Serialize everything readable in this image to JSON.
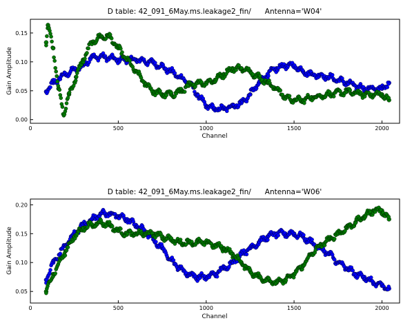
{
  "chart_data": [
    {
      "type": "scatter",
      "title": "D table: 42_091_6May.ms.leakage2_fin/      Antenna='W04'",
      "xlabel": "Channel",
      "ylabel": "Gain Amplitude",
      "xlim": [
        0,
        2100
      ],
      "ylim": [
        -0.01,
        0.17
      ],
      "xticks": [
        0,
        500,
        1000,
        1500,
        2000
      ],
      "xtick_labels": [
        "0",
        "500",
        "1000",
        "1500",
        "2000"
      ],
      "yticks": [
        0.0,
        0.05,
        0.1,
        0.15
      ],
      "ytick_labels": [
        "0.00",
        "0.05",
        "0.10",
        "0.15"
      ],
      "grid": false,
      "series": [
        {
          "color": "#0000ff",
          "x": [
            90,
            130,
            200,
            300,
            350,
            420,
            500,
            550,
            600,
            700,
            800,
            900,
            950,
            1000,
            1050,
            1100,
            1150,
            1200,
            1250,
            1300,
            1350,
            1400,
            1450,
            1500,
            1550,
            1600,
            1700,
            1800,
            1900,
            2000,
            2040
          ],
          "values": [
            0.045,
            0.06,
            0.075,
            0.09,
            0.105,
            0.105,
            0.1,
            0.1,
            0.1,
            0.095,
            0.08,
            0.06,
            0.04,
            0.02,
            0.015,
            0.015,
            0.02,
            0.025,
            0.04,
            0.06,
            0.075,
            0.085,
            0.09,
            0.09,
            0.08,
            0.075,
            0.07,
            0.06,
            0.05,
            0.05,
            0.06
          ]
        },
        {
          "color": "#007a00",
          "x": [
            90,
            100,
            130,
            160,
            190,
            220,
            260,
            300,
            350,
            400,
            450,
            500,
            550,
            600,
            650,
            700,
            750,
            800,
            850,
            900,
            950,
            1000,
            1050,
            1100,
            1150,
            1200,
            1250,
            1300,
            1350,
            1400,
            1450,
            1500,
            1550,
            1600,
            1700,
            1800,
            1900,
            2000,
            2040
          ],
          "values": [
            0.13,
            0.16,
            0.12,
            0.05,
            0.005,
            0.04,
            0.07,
            0.1,
            0.13,
            0.14,
            0.14,
            0.12,
            0.1,
            0.08,
            0.06,
            0.045,
            0.04,
            0.04,
            0.045,
            0.055,
            0.06,
            0.06,
            0.065,
            0.075,
            0.085,
            0.085,
            0.08,
            0.07,
            0.06,
            0.05,
            0.035,
            0.03,
            0.03,
            0.035,
            0.04,
            0.045,
            0.04,
            0.04,
            0.03
          ]
        }
      ]
    },
    {
      "type": "scatter",
      "title": "D table: 42_091_6May.ms.leakage2_fin/      Antenna='W06'",
      "xlabel": "Channel",
      "ylabel": "Gain Amplitude",
      "xlim": [
        0,
        2100
      ],
      "ylim": [
        0.03,
        0.21
      ],
      "xticks": [
        0,
        500,
        1000,
        1500,
        2000
      ],
      "xtick_labels": [
        "0",
        "500",
        "1000",
        "1500",
        "2000"
      ],
      "yticks": [
        0.05,
        0.1,
        0.15,
        0.2
      ],
      "ytick_labels": [
        "0.05",
        "0.10",
        "0.15",
        "0.20"
      ],
      "grid": false,
      "series": [
        {
          "color": "#0000ff",
          "x": [
            90,
            130,
            200,
            250,
            300,
            350,
            400,
            450,
            500,
            550,
            600,
            650,
            700,
            750,
            800,
            850,
            900,
            950,
            1000,
            1050,
            1100,
            1150,
            1200,
            1250,
            1300,
            1350,
            1400,
            1450,
            1500,
            1550,
            1600,
            1650,
            1700,
            1750,
            1800,
            1850,
            1900,
            1950,
            2000,
            2040
          ],
          "values": [
            0.07,
            0.1,
            0.13,
            0.15,
            0.165,
            0.175,
            0.185,
            0.185,
            0.18,
            0.175,
            0.165,
            0.155,
            0.14,
            0.125,
            0.105,
            0.09,
            0.08,
            0.075,
            0.075,
            0.08,
            0.09,
            0.1,
            0.115,
            0.125,
            0.135,
            0.145,
            0.15,
            0.15,
            0.15,
            0.145,
            0.135,
            0.125,
            0.115,
            0.1,
            0.09,
            0.08,
            0.075,
            0.065,
            0.06,
            0.055
          ]
        },
        {
          "color": "#007a00",
          "x": [
            90,
            130,
            200,
            250,
            300,
            350,
            400,
            450,
            500,
            550,
            600,
            650,
            700,
            750,
            800,
            850,
            900,
            950,
            1000,
            1050,
            1100,
            1150,
            1200,
            1250,
            1300,
            1350,
            1400,
            1450,
            1500,
            1550,
            1600,
            1650,
            1700,
            1750,
            1800,
            1850,
            1900,
            1950,
            2000,
            2040
          ],
          "values": [
            0.05,
            0.08,
            0.12,
            0.145,
            0.16,
            0.165,
            0.17,
            0.165,
            0.155,
            0.15,
            0.15,
            0.15,
            0.15,
            0.145,
            0.14,
            0.135,
            0.135,
            0.135,
            0.135,
            0.13,
            0.125,
            0.115,
            0.1,
            0.085,
            0.075,
            0.07,
            0.065,
            0.07,
            0.08,
            0.095,
            0.115,
            0.13,
            0.14,
            0.15,
            0.16,
            0.17,
            0.18,
            0.19,
            0.19,
            0.175
          ]
        }
      ]
    }
  ]
}
